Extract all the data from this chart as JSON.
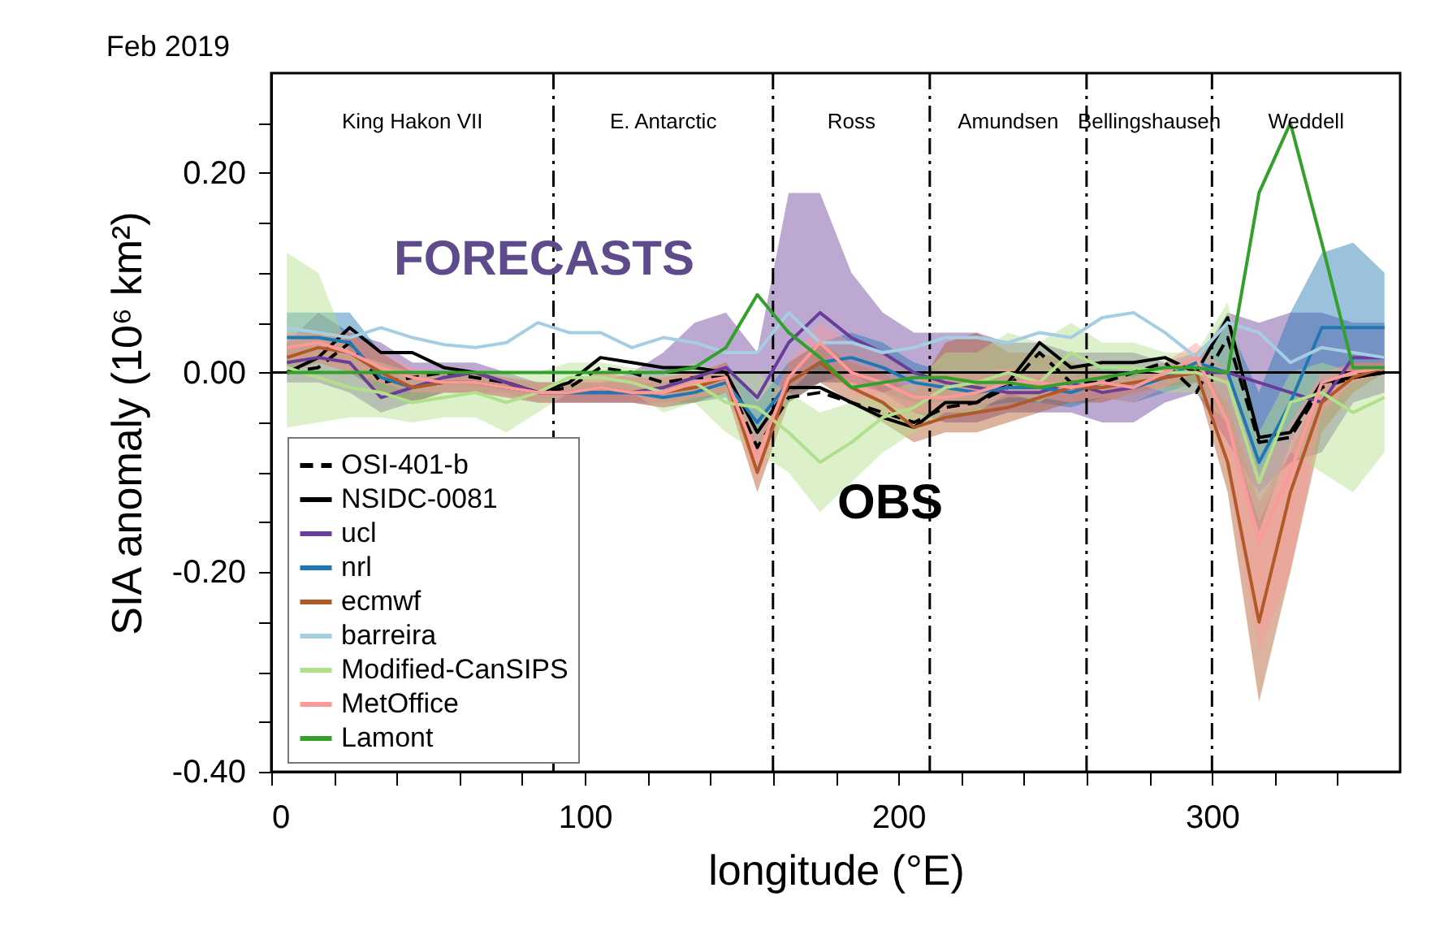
{
  "chart_data": {
    "type": "line",
    "title": "Feb 2019",
    "xlabel": "longitude (°E)",
    "ylabel": "SIA anomaly (10⁶ km²)",
    "x": [
      5,
      15,
      25,
      35,
      45,
      55,
      65,
      75,
      85,
      95,
      105,
      115,
      125,
      135,
      145,
      155,
      165,
      175,
      185,
      195,
      205,
      215,
      225,
      235,
      245,
      255,
      265,
      275,
      285,
      295,
      305,
      315,
      325,
      335,
      345,
      355
    ],
    "xlim": [
      0,
      360
    ],
    "ylim": [
      -0.4,
      0.3
    ],
    "xticks": [
      0,
      {
        "value": 20,
        "label": null
      },
      {
        "value": 40,
        "label": null
      },
      {
        "value": 60,
        "label": null
      },
      {
        "value": 80,
        "label": null
      },
      100,
      {
        "value": 120,
        "label": null
      },
      {
        "value": 140,
        "label": null
      },
      {
        "value": 160,
        "label": null
      },
      {
        "value": 180,
        "label": null
      },
      200,
      {
        "value": 220,
        "label": null
      },
      {
        "value": 240,
        "label": null
      },
      {
        "value": 260,
        "label": null
      },
      {
        "value": 280,
        "label": null
      },
      300,
      {
        "value": 320,
        "label": null
      },
      {
        "value": 340,
        "label": null
      }
    ],
    "yticks": [
      {
        "value": -0.4,
        "label": "-0.40"
      },
      {
        "value": -0.35,
        "label": null
      },
      {
        "value": -0.3,
        "label": null
      },
      {
        "value": -0.25,
        "label": null
      },
      {
        "value": -0.2,
        "label": "-0.20"
      },
      {
        "value": -0.15,
        "label": null
      },
      {
        "value": -0.1,
        "label": null
      },
      {
        "value": -0.05,
        "label": null
      },
      {
        "value": 0,
        "label": "0.00"
      },
      {
        "value": 0.05,
        "label": null
      },
      {
        "value": 0.1,
        "label": null
      },
      {
        "value": 0.15,
        "label": null
      },
      {
        "value": 0.2,
        "label": "0.20"
      },
      {
        "value": 0.25,
        "label": null
      }
    ],
    "grid": false,
    "legend": "bottom left",
    "marker": "none",
    "series": [
      {
        "name": "OSI-401-b",
        "color": "#000000",
        "line_style": "dashed",
        "values": [
          0.0,
          0.005,
          0.03,
          -0.01,
          -0.005,
          0.0,
          -0.005,
          -0.01,
          -0.02,
          -0.015,
          0.005,
          0.0,
          -0.01,
          -0.005,
          -0.005,
          -0.075,
          -0.025,
          -0.02,
          -0.03,
          -0.04,
          -0.05,
          -0.035,
          -0.03,
          -0.015,
          0.02,
          -0.01,
          -0.01,
          0.0,
          0.01,
          -0.02,
          0.035,
          -0.07,
          -0.065,
          -0.015,
          -0.005,
          0.0
        ]
      },
      {
        "name": "NSIDC-0081",
        "color": "#000000",
        "line_style": "solid",
        "values": [
          0.0,
          0.015,
          0.045,
          0.02,
          0.02,
          0.005,
          0.0,
          -0.01,
          -0.02,
          -0.01,
          0.015,
          0.01,
          0.005,
          0.005,
          0.0,
          -0.06,
          -0.015,
          -0.015,
          -0.03,
          -0.045,
          -0.055,
          -0.03,
          -0.03,
          -0.01,
          0.03,
          0.005,
          0.01,
          0.01,
          0.015,
          0.0,
          0.055,
          -0.065,
          -0.06,
          -0.01,
          -0.005,
          0.0
        ]
      },
      {
        "name": "ucl",
        "color": "#6a3d9a",
        "line_style": "solid",
        "values": [
          0.01,
          0.015,
          0.01,
          -0.025,
          -0.015,
          -0.005,
          0.0,
          -0.01,
          -0.02,
          -0.02,
          -0.02,
          -0.02,
          -0.015,
          -0.005,
          0.005,
          -0.025,
          0.03,
          0.06,
          0.035,
          0.02,
          0.0,
          -0.01,
          -0.015,
          -0.02,
          -0.02,
          -0.01,
          -0.02,
          -0.015,
          -0.005,
          0.0,
          0.0,
          -0.01,
          -0.02,
          -0.03,
          0.015,
          0.015
        ],
        "upper": [
          0.03,
          0.06,
          0.04,
          0.03,
          0.01,
          0.01,
          0.01,
          0.0,
          -0.01,
          -0.01,
          -0.01,
          0.0,
          0.02,
          0.05,
          0.06,
          0.02,
          0.18,
          0.18,
          0.1,
          0.06,
          0.04,
          0.04,
          0.04,
          0.03,
          0.03,
          0.02,
          0.02,
          0.02,
          0.01,
          0.01,
          0.06,
          0.05,
          0.06,
          0.06,
          0.05,
          0.05
        ],
        "lower": [
          -0.01,
          -0.01,
          -0.02,
          -0.04,
          -0.03,
          -0.02,
          -0.02,
          -0.02,
          -0.03,
          -0.03,
          -0.03,
          -0.03,
          -0.03,
          -0.03,
          -0.02,
          -0.08,
          -0.02,
          -0.01,
          -0.01,
          -0.02,
          -0.04,
          -0.05,
          -0.05,
          -0.04,
          -0.04,
          -0.04,
          -0.05,
          -0.05,
          -0.03,
          -0.02,
          -0.07,
          -0.12,
          -0.09,
          -0.08,
          -0.03,
          -0.02
        ]
      },
      {
        "name": "nrl",
        "color": "#1f78b4",
        "line_style": "solid",
        "values": [
          0.035,
          0.035,
          0.03,
          -0.005,
          -0.015,
          -0.01,
          -0.01,
          -0.015,
          -0.02,
          -0.02,
          -0.02,
          -0.02,
          -0.025,
          -0.02,
          -0.01,
          -0.05,
          -0.01,
          0.01,
          0.015,
          0.005,
          -0.01,
          -0.015,
          -0.02,
          -0.015,
          -0.015,
          -0.02,
          -0.01,
          -0.015,
          -0.005,
          0.01,
          0.0,
          -0.09,
          -0.03,
          0.045,
          0.045,
          0.045
        ],
        "upper": [
          0.06,
          0.06,
          0.06,
          0.02,
          0.0,
          0.0,
          0.0,
          -0.005,
          -0.01,
          -0.01,
          -0.01,
          -0.01,
          -0.01,
          -0.005,
          0.01,
          -0.03,
          0.01,
          0.03,
          0.04,
          0.03,
          0.01,
          0.0,
          0.0,
          0.0,
          0.0,
          -0.005,
          0.005,
          0.0,
          0.01,
          0.02,
          0.05,
          -0.02,
          0.06,
          0.12,
          0.13,
          0.1
        ],
        "lower": [
          0.01,
          0.01,
          0.0,
          -0.02,
          -0.03,
          -0.02,
          -0.02,
          -0.025,
          -0.03,
          -0.03,
          -0.03,
          -0.03,
          -0.035,
          -0.03,
          -0.025,
          -0.08,
          -0.03,
          -0.01,
          0.0,
          -0.02,
          -0.03,
          -0.03,
          -0.035,
          -0.03,
          -0.03,
          -0.035,
          -0.025,
          -0.03,
          -0.02,
          -0.01,
          -0.05,
          -0.16,
          -0.07,
          -0.01,
          0.0,
          0.0
        ]
      },
      {
        "name": "ecmwf",
        "color": "#b15928",
        "line_style": "solid",
        "values": [
          0.015,
          0.025,
          0.02,
          0.0,
          -0.015,
          -0.01,
          -0.01,
          -0.015,
          -0.02,
          -0.02,
          -0.015,
          -0.02,
          -0.02,
          -0.015,
          -0.005,
          -0.1,
          -0.01,
          0.01,
          -0.015,
          -0.03,
          -0.055,
          -0.045,
          -0.04,
          -0.035,
          -0.025,
          -0.015,
          -0.015,
          -0.01,
          -0.005,
          0.0,
          -0.09,
          -0.25,
          -0.12,
          -0.03,
          -0.005,
          0.005
        ],
        "upper": [
          0.03,
          0.04,
          0.04,
          0.02,
          0.0,
          0.0,
          0.0,
          -0.005,
          -0.01,
          -0.01,
          0.0,
          -0.005,
          -0.005,
          0.0,
          0.01,
          -0.07,
          0.01,
          0.03,
          0.01,
          0.0,
          -0.02,
          0.03,
          0.04,
          0.02,
          0.02,
          0.01,
          0.0,
          0.0,
          0.005,
          0.01,
          -0.03,
          -0.13,
          -0.08,
          -0.01,
          0.01,
          0.01
        ],
        "lower": [
          0.0,
          0.01,
          0.0,
          -0.02,
          -0.03,
          -0.02,
          -0.02,
          -0.025,
          -0.03,
          -0.03,
          -0.03,
          -0.03,
          -0.035,
          -0.03,
          -0.02,
          -0.12,
          -0.03,
          -0.01,
          -0.03,
          -0.05,
          -0.07,
          -0.06,
          -0.06,
          -0.05,
          -0.04,
          -0.03,
          -0.03,
          -0.02,
          -0.015,
          -0.01,
          -0.12,
          -0.33,
          -0.2,
          -0.06,
          -0.02,
          0.0
        ]
      },
      {
        "name": "barreira",
        "color": "#a6cee3",
        "line_style": "solid",
        "values": [
          0.045,
          0.04,
          0.035,
          0.045,
          0.035,
          0.028,
          0.025,
          0.03,
          0.05,
          0.04,
          0.04,
          0.025,
          0.035,
          0.03,
          0.02,
          0.02,
          0.06,
          0.03,
          0.03,
          0.02,
          0.025,
          0.035,
          0.035,
          0.03,
          0.04,
          0.035,
          0.055,
          0.06,
          0.04,
          0.015,
          0.05,
          0.04,
          0.01,
          0.025,
          0.02,
          0.015
        ]
      },
      {
        "name": "Modified-CanSIPS",
        "color": "#b2df8a",
        "line_style": "solid",
        "values": [
          0.005,
          -0.005,
          -0.015,
          -0.02,
          -0.03,
          -0.025,
          -0.02,
          -0.03,
          -0.02,
          -0.005,
          -0.005,
          -0.01,
          -0.02,
          -0.01,
          -0.03,
          -0.035,
          -0.06,
          -0.09,
          -0.07,
          -0.045,
          -0.035,
          -0.015,
          -0.01,
          0.0,
          -0.01,
          0.02,
          0.005,
          0.005,
          0.0,
          0.0,
          -0.01,
          -0.11,
          -0.03,
          -0.02,
          -0.04,
          -0.025
        ],
        "upper": [
          0.12,
          0.1,
          0.02,
          0.01,
          0.0,
          0.0,
          0.0,
          0.0,
          0.0,
          0.01,
          0.01,
          0.005,
          0.0,
          0.01,
          0.0,
          0.0,
          -0.02,
          -0.04,
          -0.03,
          -0.02,
          -0.01,
          0.02,
          0.02,
          0.04,
          0.03,
          0.05,
          0.03,
          0.03,
          0.02,
          0.02,
          0.07,
          -0.06,
          0.0,
          0.01,
          0.0,
          0.0
        ],
        "lower": [
          -0.055,
          -0.05,
          -0.045,
          -0.045,
          -0.05,
          -0.045,
          -0.045,
          -0.06,
          -0.04,
          -0.02,
          -0.02,
          -0.02,
          -0.04,
          -0.03,
          -0.06,
          -0.08,
          -0.1,
          -0.14,
          -0.11,
          -0.08,
          -0.06,
          -0.04,
          -0.04,
          -0.02,
          -0.03,
          -0.01,
          -0.02,
          -0.01,
          -0.02,
          -0.02,
          -0.05,
          -0.15,
          -0.08,
          -0.1,
          -0.12,
          -0.08
        ]
      },
      {
        "name": "MetOffice",
        "color": "#fb9a99",
        "line_style": "solid",
        "values": [
          0.025,
          0.03,
          0.02,
          0.005,
          -0.005,
          -0.01,
          -0.01,
          -0.015,
          -0.02,
          -0.02,
          -0.015,
          -0.02,
          -0.02,
          -0.01,
          -0.005,
          -0.085,
          -0.005,
          0.03,
          0.0,
          -0.01,
          -0.025,
          -0.025,
          -0.02,
          -0.01,
          -0.01,
          -0.015,
          -0.01,
          -0.015,
          0.0,
          0.015,
          -0.05,
          -0.17,
          -0.1,
          -0.01,
          0.0,
          0.005
        ],
        "upper": [
          0.04,
          0.04,
          0.04,
          0.02,
          0.005,
          0.0,
          0.0,
          -0.005,
          -0.01,
          -0.01,
          0.0,
          -0.005,
          -0.005,
          0.0,
          0.01,
          -0.06,
          0.01,
          0.05,
          0.03,
          0.02,
          0.0,
          0.0,
          0.0,
          0.005,
          0.0,
          -0.005,
          0.0,
          -0.005,
          0.01,
          0.03,
          0.0,
          -0.1,
          -0.05,
          0.0,
          0.01,
          0.01
        ],
        "lower": [
          0.01,
          0.01,
          0.0,
          -0.01,
          -0.02,
          -0.02,
          -0.02,
          -0.025,
          -0.03,
          -0.03,
          -0.03,
          -0.03,
          -0.035,
          -0.025,
          -0.02,
          -0.11,
          -0.02,
          0.01,
          -0.02,
          -0.03,
          -0.04,
          -0.04,
          -0.035,
          -0.025,
          -0.025,
          -0.03,
          -0.025,
          -0.03,
          -0.015,
          0.0,
          -0.1,
          -0.28,
          -0.2,
          -0.04,
          -0.01,
          0.0
        ]
      },
      {
        "name": "Lamont",
        "color": "#33a02c",
        "line_style": "solid",
        "values": [
          0.0,
          0.0,
          0.0,
          0.0,
          0.0,
          0.0,
          0.0,
          0.0,
          0.0,
          0.0,
          0.0,
          0.0,
          0.0,
          0.005,
          0.025,
          0.078,
          0.04,
          0.015,
          -0.015,
          -0.01,
          -0.005,
          -0.005,
          -0.01,
          -0.01,
          -0.015,
          -0.01,
          -0.005,
          0.0,
          0.005,
          0.005,
          0.0,
          0.18,
          0.25,
          0.13,
          0.005,
          0.005
        ]
      }
    ],
    "ref_lines": [
      {
        "axis": "y",
        "value": 0,
        "color": "#000000",
        "line_style": "solid"
      },
      {
        "axis": "x",
        "value": 90,
        "color": "#000000",
        "line_style": "dashed"
      },
      {
        "axis": "x",
        "value": 160,
        "color": "#000000",
        "line_style": "dashed"
      },
      {
        "axis": "x",
        "value": 210,
        "color": "#000000",
        "line_style": "dashed"
      },
      {
        "axis": "x",
        "value": 260,
        "color": "#000000",
        "line_style": "dashed"
      },
      {
        "axis": "x",
        "value": 300,
        "color": "#000000",
        "line_style": "dashed"
      }
    ],
    "annotations": [
      "King Hakon VII",
      "E. Antarctic",
      "Ross",
      "Amundsen",
      "Bellingshausen",
      "Weddell",
      "FORECASTS",
      "OBS"
    ]
  }
}
